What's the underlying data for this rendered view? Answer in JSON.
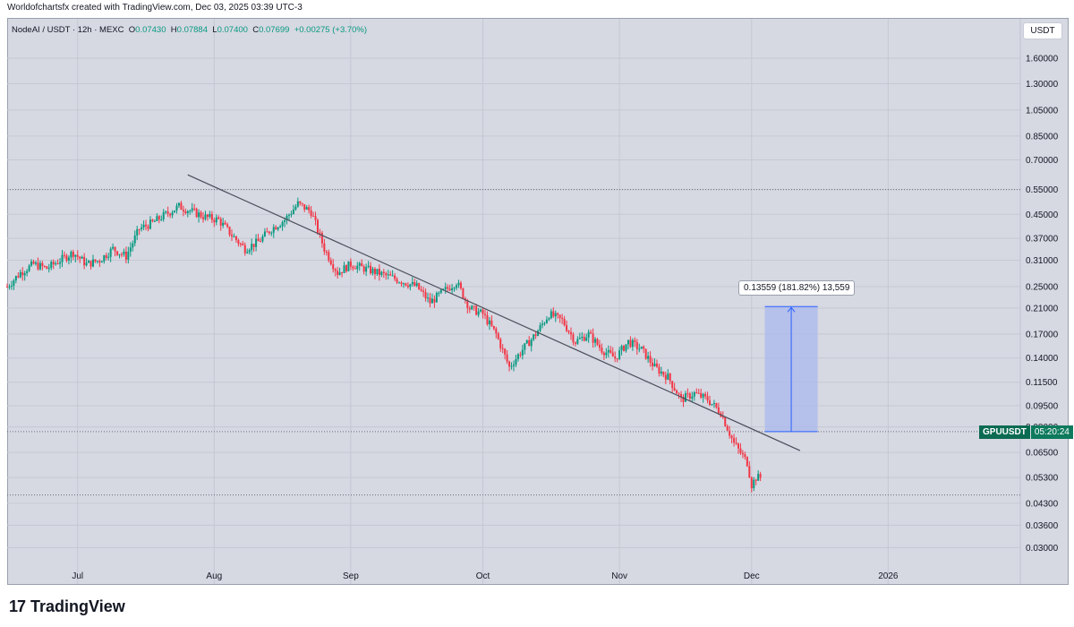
{
  "caption": "Worldofchartsfx created with TradingView.com, Dec 03, 2025 03:39 UTC-3",
  "symbol": {
    "name": "NodeAI / USDT · 12h · MEXC",
    "o_label": "O",
    "o": "0.07430",
    "h_label": "H",
    "h": "0.07884",
    "l_label": "L",
    "l": "0.07400",
    "c_label": "C",
    "c": "0.07699",
    "change": "+0.00275 (+3.70%)"
  },
  "currency_badge": "USDT",
  "ticker_tag": {
    "name": "GPUUSDT",
    "countdown": "05:20:24"
  },
  "measure_label": "0.13559 (181.82%) 13,559",
  "brand": {
    "logo": "17",
    "name": "TradingView"
  },
  "colors": {
    "background": "#d6d8e2",
    "up": "#089981",
    "down": "#f23645",
    "measure_fill": "#a9b8ee",
    "measure_line": "#2962ff",
    "trendline": "#4a4e5a"
  },
  "chart_data": {
    "type": "candlestick",
    "title": "NodeAI / USDT · 12h · MEXC",
    "y_scale": "log",
    "y_ticks": [
      "1.60000",
      "1.30000",
      "1.05000",
      "0.85000",
      "0.70000",
      "0.55000",
      "0.45000",
      "0.37000",
      "0.31000",
      "0.25000",
      "0.21000",
      "0.17000",
      "0.14000",
      "0.11500",
      "0.09500",
      "0.08000",
      "0.06500",
      "0.05300",
      "0.04300",
      "0.03600",
      "0.03000"
    ],
    "x_ticks": [
      "Jul",
      "Aug",
      "Sep",
      "Oct",
      "Nov",
      "Dec",
      "2026"
    ],
    "x_range": [
      "2025-06-15",
      "2026-01-31"
    ],
    "last_price": 0.07699,
    "horizontal_levels": [
      0.55,
      0.046,
      0.077
    ],
    "trendline": {
      "start": [
        "2025-07-26",
        0.62
      ],
      "end": [
        "2025-12-12",
        0.066
      ]
    },
    "measure": {
      "x_start": "2025-12-04",
      "x_end": "2025-12-16",
      "y_low": 0.077,
      "y_high": 0.2126,
      "change": 0.13559,
      "percent": 181.82
    },
    "price_path": [
      [
        "2025-06-15",
        0.25
      ],
      [
        "2025-06-18",
        0.28
      ],
      [
        "2025-06-21",
        0.3
      ],
      [
        "2025-06-24",
        0.29
      ],
      [
        "2025-06-27",
        0.31
      ],
      [
        "2025-06-30",
        0.33
      ],
      [
        "2025-07-03",
        0.3
      ],
      [
        "2025-07-06",
        0.31
      ],
      [
        "2025-07-09",
        0.34
      ],
      [
        "2025-07-12",
        0.32
      ],
      [
        "2025-07-15",
        0.4
      ],
      [
        "2025-07-18",
        0.42
      ],
      [
        "2025-07-21",
        0.45
      ],
      [
        "2025-07-24",
        0.48
      ],
      [
        "2025-07-27",
        0.46
      ],
      [
        "2025-07-30",
        0.44
      ],
      [
        "2025-08-02",
        0.43
      ],
      [
        "2025-08-05",
        0.38
      ],
      [
        "2025-08-08",
        0.34
      ],
      [
        "2025-08-11",
        0.36
      ],
      [
        "2025-08-14",
        0.4
      ],
      [
        "2025-08-17",
        0.43
      ],
      [
        "2025-08-20",
        0.49
      ],
      [
        "2025-08-23",
        0.46
      ],
      [
        "2025-08-26",
        0.34
      ],
      [
        "2025-08-29",
        0.28
      ],
      [
        "2025-09-01",
        0.3
      ],
      [
        "2025-09-04",
        0.29
      ],
      [
        "2025-09-07",
        0.28
      ],
      [
        "2025-09-10",
        0.27
      ],
      [
        "2025-09-13",
        0.26
      ],
      [
        "2025-09-16",
        0.25
      ],
      [
        "2025-09-19",
        0.22
      ],
      [
        "2025-09-22",
        0.24
      ],
      [
        "2025-09-25",
        0.26
      ],
      [
        "2025-09-28",
        0.21
      ],
      [
        "2025-10-01",
        0.2
      ],
      [
        "2025-10-04",
        0.17
      ],
      [
        "2025-10-07",
        0.13
      ],
      [
        "2025-10-10",
        0.15
      ],
      [
        "2025-10-13",
        0.17
      ],
      [
        "2025-10-16",
        0.2
      ],
      [
        "2025-10-19",
        0.19
      ],
      [
        "2025-10-22",
        0.16
      ],
      [
        "2025-10-25",
        0.17
      ],
      [
        "2025-10-28",
        0.15
      ],
      [
        "2025-10-31",
        0.14
      ],
      [
        "2025-11-03",
        0.16
      ],
      [
        "2025-11-06",
        0.15
      ],
      [
        "2025-11-09",
        0.13
      ],
      [
        "2025-11-12",
        0.12
      ],
      [
        "2025-11-15",
        0.1
      ],
      [
        "2025-11-18",
        0.105
      ],
      [
        "2025-11-21",
        0.1
      ],
      [
        "2025-11-24",
        0.09
      ],
      [
        "2025-11-27",
        0.07
      ],
      [
        "2025-11-30",
        0.06
      ],
      [
        "2025-12-01",
        0.05
      ],
      [
        "2025-12-02",
        0.053
      ]
    ]
  }
}
